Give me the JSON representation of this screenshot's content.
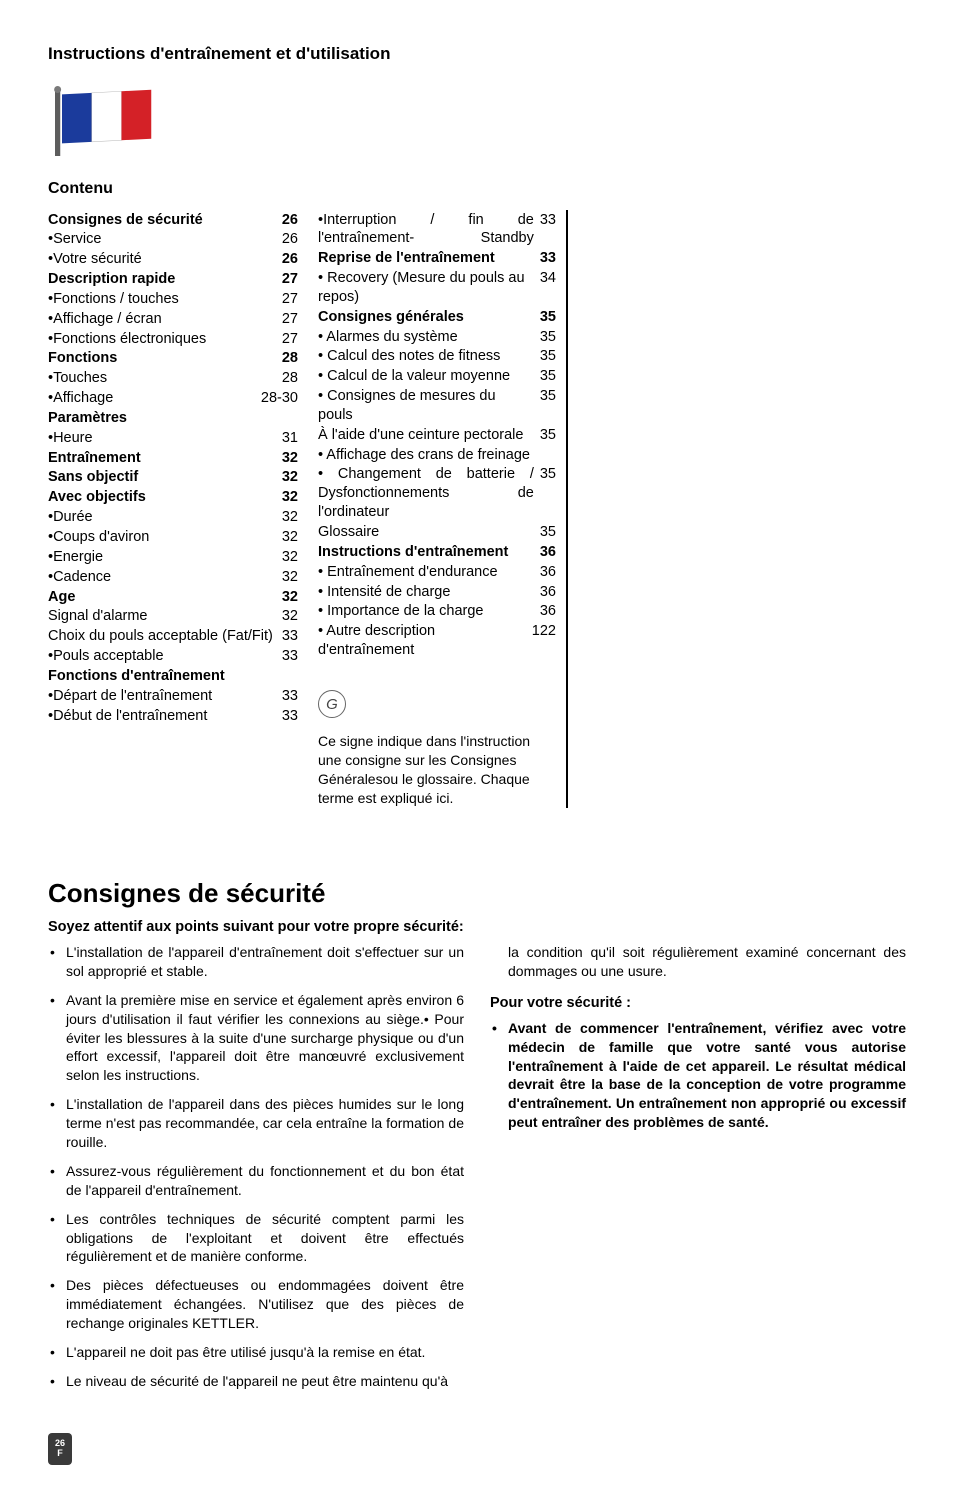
{
  "page_title": "Instructions d'entraînement et d'utilisation",
  "flag": {
    "colors": [
      "#1b3b9c",
      "#ffffff",
      "#d42127"
    ],
    "pole": "#5d5d5d"
  },
  "contenu_heading": "Contenu",
  "toc_left": [
    {
      "label": "Consignes de sécurité",
      "page": "26",
      "bold": true
    },
    {
      "label": "•Service",
      "page": "26"
    },
    {
      "label": "•Votre sécurité",
      "page": "26",
      "boldPage": true
    },
    {
      "label": "Description rapide",
      "page": "27",
      "bold": true
    },
    {
      "label": "•Fonctions / touches",
      "page": "27"
    },
    {
      "label": "•Affichage / écran",
      "page": "27"
    },
    {
      "label": "•Fonctions électroniques",
      "page": "27"
    },
    {
      "label": "Fonctions",
      "page": "28",
      "bold": true
    },
    {
      "label": "•Touches",
      "page": "28"
    },
    {
      "label": "•Affichage",
      "page": "28-30"
    },
    {
      "label": "Paramètres",
      "page": "",
      "bold": true
    },
    {
      "label": "•Heure",
      "page": "31"
    },
    {
      "label": "Entraînement",
      "page": "32",
      "bold": true
    },
    {
      "label": "Sans objectif",
      "page": "32",
      "bold": true
    },
    {
      "label": "Avec objectifs",
      "page": "32",
      "bold": true
    },
    {
      "label": "•Durée",
      "page": "32"
    },
    {
      "label": "•Coups d'aviron",
      "page": "32"
    },
    {
      "label": "•Energie",
      "page": "32"
    },
    {
      "label": "•Cadence",
      "page": "32"
    },
    {
      "label": "Age",
      "page": "32",
      "bold": true
    },
    {
      "label": "Signal d'alarme",
      "page": "32"
    },
    {
      "label": "Choix du pouls acceptable (Fat/Fit)",
      "page": "33"
    },
    {
      "label": "•Pouls acceptable",
      "page": "33"
    },
    {
      "label": "Fonctions d'entraînement",
      "page": "",
      "bold": true
    },
    {
      "label": "•Départ de l'entraînement",
      "page": "33"
    },
    {
      "label": "•Début de l'entraînement",
      "page": "33"
    }
  ],
  "toc_right": [
    {
      "label": "•Interruption / fin de l'entraînement- Standby",
      "page": "33",
      "justify": true
    },
    {
      "label": "Reprise de l'entraînement",
      "page": "33",
      "bold": true
    },
    {
      "label": "• Recovery (Mesure du pouls au repos)",
      "page": "34"
    },
    {
      "label": "Consignes générales",
      "page": "35",
      "bold": true
    },
    {
      "label": "• Alarmes du système",
      "page": "35"
    },
    {
      "label": "• Calcul des notes de fitness",
      "page": "35"
    },
    {
      "label": "• Calcul de la valeur moyenne",
      "page": "35"
    },
    {
      "label": "• Consignes de mesures du pouls",
      "page": "35"
    },
    {
      "label": "   À l'aide d'une ceinture pectorale",
      "page": "35"
    },
    {
      "label": "• Affichage des crans de freinage",
      "page": ""
    },
    {
      "label": "• Changement de batterie / Dysfonctionnements de l'ordinateur",
      "page": "35",
      "justify": true
    },
    {
      "label": "Glossaire",
      "page": "35"
    },
    {
      "label": "Instructions d'entraînement",
      "page": "36",
      "bold": true
    },
    {
      "label": "• Entraînement d'endurance",
      "page": "36"
    },
    {
      "label": "• Intensité de charge",
      "page": "36"
    },
    {
      "label": "• Importance de la charge",
      "page": "36"
    },
    {
      "label": "• Autre description d'entraînement",
      "page": "122"
    }
  ],
  "g_letter": "G",
  "g_text": "Ce signe indique dans l'instruction une consigne sur les Consignes Généralesou le glossaire. Chaque terme est expliqué ici.",
  "section_heading": "Consignes de sécurité",
  "sub_heading": "Soyez attentif aux points suivant pour votre propre sécurité:",
  "bullets_left": [
    "L'installation de l'appareil d'entraînement doit s'effectuer sur un sol approprié et stable.",
    "Avant la première mise en service et également après environ 6 jours d'utilisation il faut vérifier les connexions au siège.• Pour éviter les blessures à la suite d'une surcharge physique ou d'un effort excessif, l'appareil doit être manœuvré exclusivement selon les instructions.",
    "L'installation de l'appareil dans des pièces humides sur le long terme n'est pas recommandée, car cela entraîne la formation de rouille.",
    "Assurez-vous régulièrement du fonctionnement et du bon état de l'appareil d'entraînement.",
    "Les contrôles techniques de sécurité comptent parmi les obligations de l'exploitant et doivent être effectués régulièrement et de manière conforme.",
    "Des pièces défectueuses ou endommagées doivent être immédiatement échangées. N'utilisez que des pièces de rechange originales KETTLER.",
    "L'appareil ne doit pas être utilisé jusqu'à la remise en état.",
    "Le niveau de sécurité de l'appareil ne peut être maintenu qu'à"
  ],
  "carry_right": "la condition qu'il soit régulièrement examiné concernant des dommages ou une usure.",
  "right_sub": "Pour votre sécurité :",
  "right_bullet_bold": "Avant de commencer l'entraînement, vérifiez avec votre médecin de famille que votre santé vous autorise l'entraînement à l'aide de cet appareil. Le résultat médical devrait être la base de la conception de votre programme d'entraînement. Un entraînement non approprié ou excessif peut entraîner des problèmes de santé.",
  "footer": {
    "page": "26",
    "lang": "F",
    "bg": "#3a3a3a",
    "fg": "#ffffff"
  }
}
